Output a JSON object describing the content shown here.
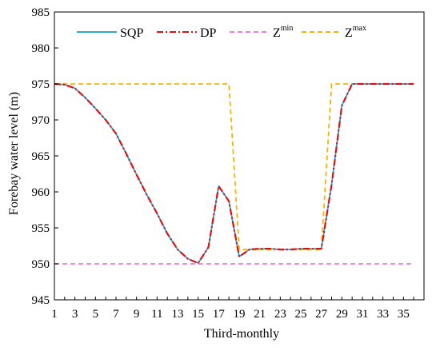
{
  "chart_data": {
    "type": "line",
    "xlabel": "Third-monthly",
    "ylabel": "Forebay water level (m)",
    "xlim": [
      1,
      37
    ],
    "ylim": [
      945,
      985
    ],
    "xticks": [
      1,
      3,
      5,
      7,
      9,
      11,
      13,
      15,
      17,
      19,
      21,
      23,
      25,
      27,
      29,
      31,
      33,
      35
    ],
    "yticks": [
      945,
      950,
      955,
      960,
      965,
      970,
      975,
      980,
      985
    ],
    "grid": false,
    "legend_position": "top-left",
    "x": [
      1,
      2,
      3,
      4,
      5,
      6,
      7,
      8,
      9,
      10,
      11,
      12,
      13,
      14,
      15,
      16,
      17,
      18,
      19,
      20,
      21,
      22,
      23,
      24,
      25,
      26,
      27,
      28,
      29,
      30,
      31,
      32,
      33,
      34,
      35,
      36
    ],
    "series": [
      {
        "name": "SQP",
        "base": "SQP",
        "sup": "",
        "color": "#2aa8d8",
        "dash": "solid",
        "values": [
          975,
          974.9,
          974.4,
          973.1,
          971.6,
          970.0,
          968.1,
          965.3,
          962.4,
          959.6,
          957.0,
          954.2,
          952.0,
          950.7,
          950.1,
          952.3,
          960.8,
          958.7,
          951.0,
          952.0,
          952.1,
          952.1,
          952.0,
          952.0,
          952.1,
          952.1,
          952.1,
          961.0,
          972.0,
          975,
          975,
          975,
          975,
          975,
          975,
          975
        ]
      },
      {
        "name": "DP",
        "base": "DP",
        "sup": "",
        "color": "#e01010",
        "dash": "dashdot",
        "values": [
          975,
          974.9,
          974.4,
          973.1,
          971.6,
          970.0,
          968.1,
          965.3,
          962.4,
          959.6,
          957.0,
          954.2,
          952.0,
          950.7,
          950.1,
          952.3,
          960.8,
          958.7,
          951.0,
          952.0,
          952.1,
          952.1,
          952.0,
          952.0,
          952.1,
          952.1,
          952.1,
          961.0,
          972.0,
          975,
          975,
          975,
          975,
          975,
          975,
          975
        ]
      },
      {
        "name": "Zmin",
        "base": "Z",
        "sup": "min",
        "color": "#e87ee0",
        "dash": "dashed",
        "values": [
          950,
          950,
          950,
          950,
          950,
          950,
          950,
          950,
          950,
          950,
          950,
          950,
          950,
          950,
          950,
          950,
          950,
          950,
          950,
          950,
          950,
          950,
          950,
          950,
          950,
          950,
          950,
          950,
          950,
          950,
          950,
          950,
          950,
          950,
          950,
          950
        ]
      },
      {
        "name": "Zmax",
        "base": "Z",
        "sup": "max",
        "color": "#f5b400",
        "dash": "dashed",
        "values": [
          975,
          975,
          975,
          975,
          975,
          975,
          975,
          975,
          975,
          975,
          975,
          975,
          975,
          975,
          975,
          975,
          975,
          975,
          952,
          952,
          952,
          952,
          952,
          952,
          952,
          952,
          952,
          975,
          975,
          975,
          975,
          975,
          975,
          975,
          975,
          975
        ]
      }
    ]
  }
}
